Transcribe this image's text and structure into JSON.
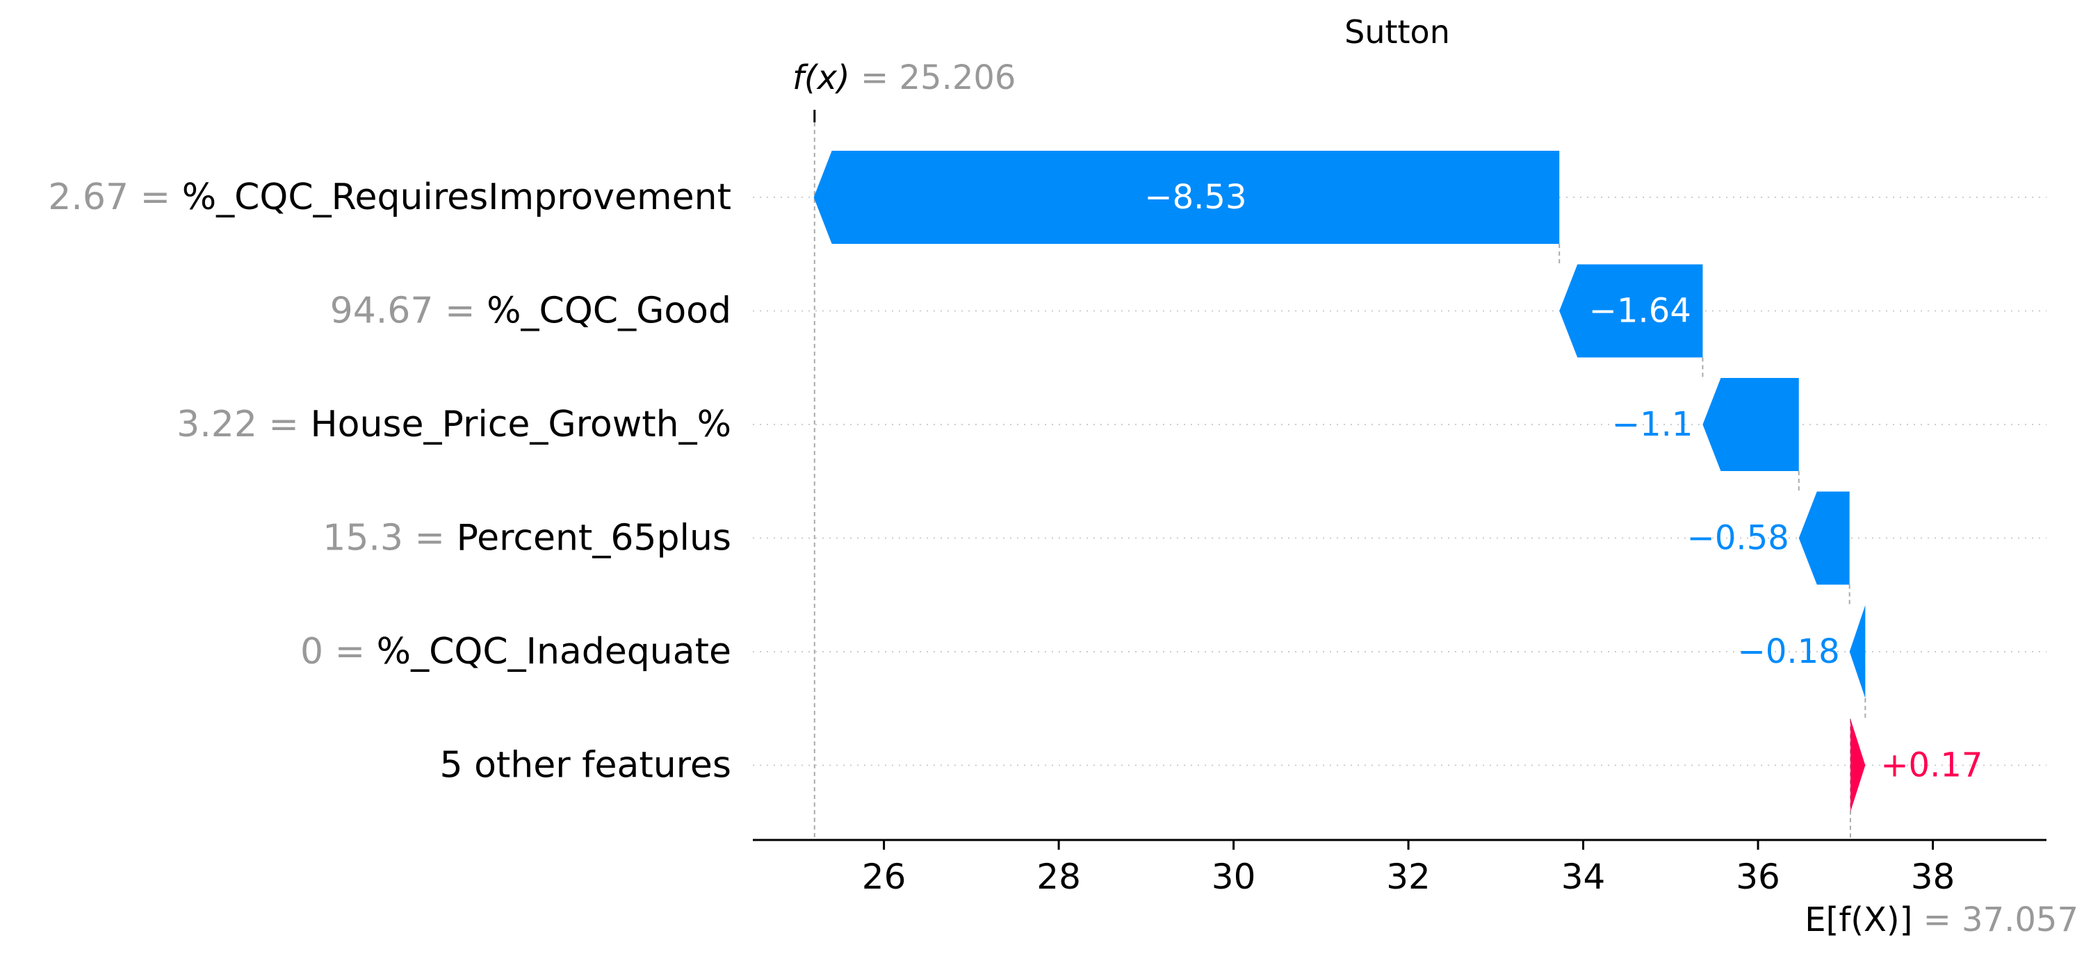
{
  "chart_data": {
    "type": "waterfall",
    "title": "Sutton",
    "fx_label": "f(x)",
    "fx_value": "25.206",
    "fx": 25.206,
    "ex_label": "E[f(X)]",
    "ex_value": "37.057",
    "ex": 37.057,
    "xlim": [
      24.5,
      39.3
    ],
    "xticks": [
      26,
      28,
      30,
      32,
      34,
      36,
      38
    ],
    "xtick_labels": [
      "26",
      "28",
      "30",
      "32",
      "34",
      "36",
      "38"
    ],
    "grid": "horizontal dotted",
    "features": [
      {
        "value_text": "2.67",
        "name": "%_CQC_RequiresImprovement",
        "contribution": -8.53,
        "label": "−8.53"
      },
      {
        "value_text": "94.67",
        "name": "%_CQC_Good",
        "contribution": -1.64,
        "label": "−1.64"
      },
      {
        "value_text": "3.22",
        "name": "House_Price_Growth_%",
        "contribution": -1.1,
        "label": "−1.1"
      },
      {
        "value_text": "15.3",
        "name": "Percent_65plus",
        "contribution": -0.58,
        "label": "−0.58"
      },
      {
        "value_text": "0",
        "name": "%_CQC_Inadequate",
        "contribution": -0.18,
        "label": "−0.18"
      },
      {
        "value_text": "",
        "name": "5 other features",
        "contribution": 0.17,
        "label": "+0.17"
      }
    ],
    "colors": {
      "negative": "#008bfb",
      "positive": "#ff0051",
      "feature_value": "#999999",
      "axis": "#000000",
      "grid": "#cccccc"
    }
  }
}
